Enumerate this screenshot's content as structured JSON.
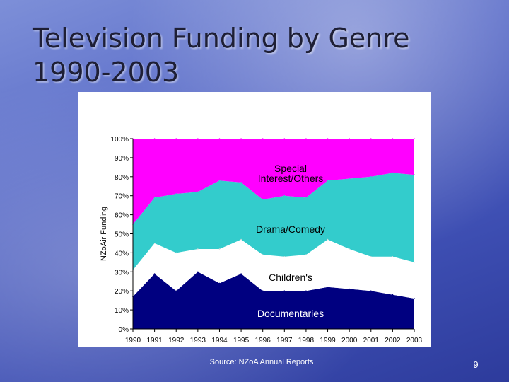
{
  "slide": {
    "title_line1": "Television Funding by Genre",
    "title_line2": "1990-2003",
    "source": "Source: NZoA Annual Reports",
    "page_number": "9"
  },
  "chart_data": {
    "type": "area",
    "stacked": true,
    "percent": true,
    "title": "",
    "xlabel": "",
    "ylabel": "NZoAir Funding",
    "x": [
      "1990",
      "1991",
      "1992",
      "1993",
      "1994",
      "1995",
      "1996",
      "1997",
      "1998",
      "1999",
      "2000",
      "2001",
      "2002",
      "2003"
    ],
    "ylim": [
      0,
      100
    ],
    "yticks": [
      "0%",
      "10%",
      "20%",
      "30%",
      "40%",
      "50%",
      "60%",
      "70%",
      "80%",
      "90%",
      "100%"
    ],
    "series": [
      {
        "name": "Documentaries",
        "color": "#000080",
        "values": [
          17,
          29,
          20,
          30,
          24,
          29,
          20,
          20,
          20,
          22,
          21,
          20,
          18,
          16
        ]
      },
      {
        "name": "Children's",
        "color": "#ffffff",
        "values": [
          14,
          16,
          20,
          12,
          18,
          18,
          19,
          18,
          19,
          25,
          21,
          18,
          20,
          19
        ]
      },
      {
        "name": "Drama/Comedy",
        "color": "#33cccc",
        "values": [
          24,
          24,
          31,
          30,
          36,
          30,
          29,
          32,
          30,
          31,
          37,
          42,
          44,
          46
        ]
      },
      {
        "name": "Special Interest/Others",
        "color": "#ff00ff",
        "values": [
          45,
          31,
          29,
          28,
          22,
          23,
          32,
          30,
          31,
          22,
          21,
          20,
          18,
          19
        ]
      }
    ],
    "labels": [
      {
        "series": "Special Interest/Others",
        "line1": "Special",
        "line2": "Interest/Others"
      },
      {
        "series": "Drama/Comedy",
        "line1": "Drama/Comedy",
        "line2": ""
      },
      {
        "series": "Children's",
        "line1": "Children's",
        "line2": ""
      },
      {
        "series": "Documentaries",
        "line1": "Documentaries",
        "line2": ""
      }
    ],
    "grid": false,
    "legend": "none"
  }
}
